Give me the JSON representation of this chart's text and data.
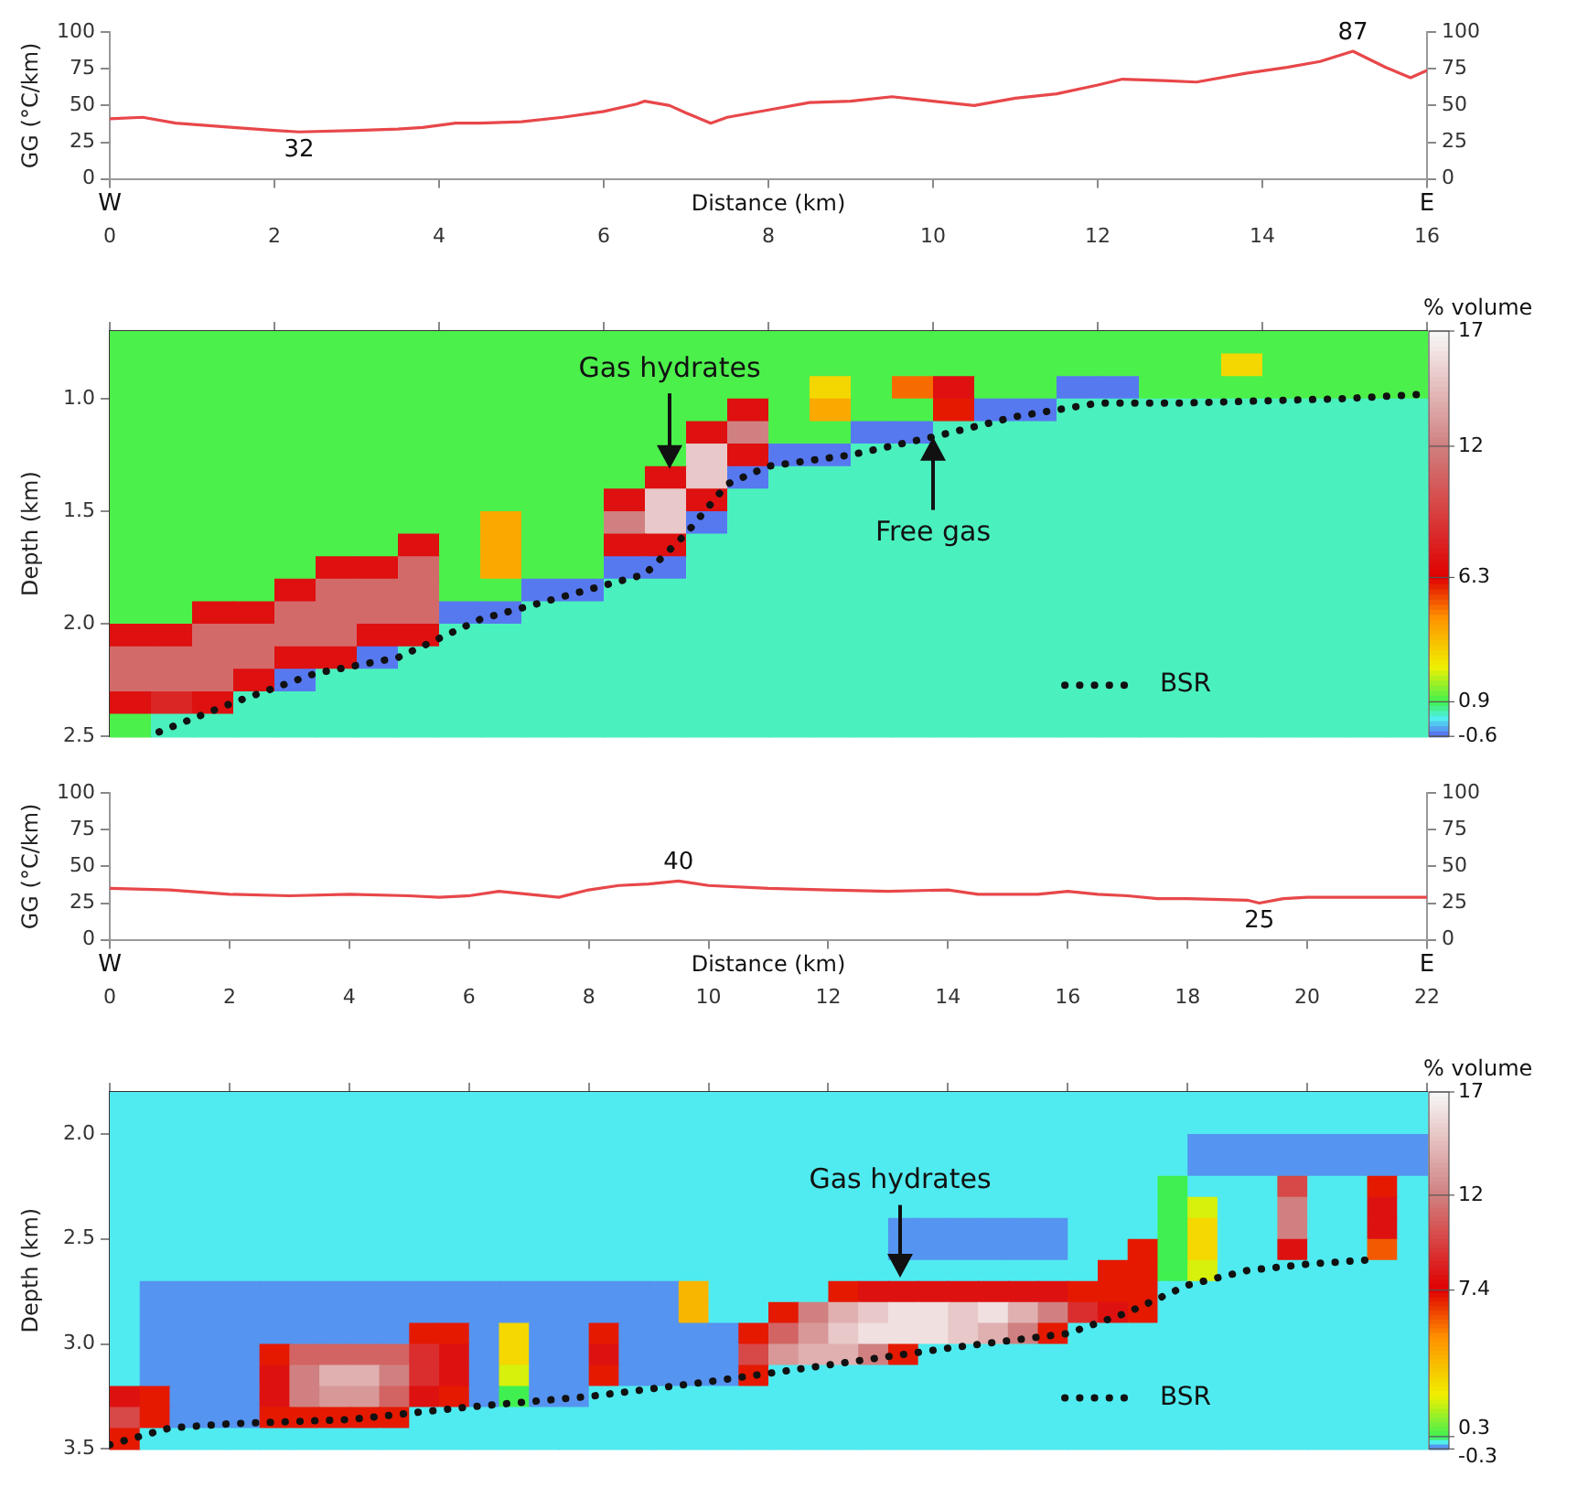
{
  "chart_data": [
    {
      "type": "line",
      "xlabel": "Distance (km)",
      "ylabel": "GG (°C/km)",
      "xlim": [
        0,
        16
      ],
      "xticks": [
        0,
        2,
        4,
        6,
        8,
        10,
        12,
        14,
        16
      ],
      "ylim": [
        0,
        100
      ],
      "yticks": [
        0,
        25,
        50,
        75,
        100
      ],
      "y2lim": [
        0,
        100
      ],
      "y2ticks": [
        0,
        25,
        50,
        75,
        100
      ],
      "x": [
        0,
        0.4,
        0.8,
        1.5,
        2,
        2.3,
        3,
        3.5,
        3.8,
        4.2,
        4.5,
        5,
        5.5,
        6,
        6.4,
        6.5,
        6.8,
        7,
        7.3,
        7.5,
        8,
        8.5,
        9,
        9.5,
        10,
        10.5,
        11,
        11.5,
        12,
        12.3,
        12.8,
        13.2,
        13.8,
        14.3,
        14.7,
        15.1,
        15.5,
        15.8,
        16
      ],
      "series": [
        {
          "color": "#e8474a",
          "values": [
            41,
            42,
            38,
            35,
            33,
            32,
            33,
            34,
            35,
            38,
            38,
            39,
            42,
            46,
            51,
            53,
            50,
            45,
            38,
            42,
            47,
            52,
            53,
            56,
            53,
            50,
            55,
            58,
            64,
            68,
            67,
            66,
            72,
            76,
            80,
            87,
            76,
            69,
            74
          ]
        }
      ],
      "annotations": [
        "W",
        "E",
        {
          "text": "32",
          "x": 2.3,
          "y": 32
        },
        {
          "text": "87",
          "x": 15.1,
          "y": 87
        }
      ]
    },
    {
      "type": "heatmap",
      "ylabel": "Depth (km)",
      "clabel": "% volume",
      "xlim": [
        0,
        16
      ],
      "xticks": [
        0,
        2,
        4,
        6,
        8,
        10,
        12,
        14,
        16
      ],
      "ylim": [
        2.5,
        0.7
      ],
      "yticks": [
        {
          "value": 1,
          "label": "1.0"
        },
        1.5,
        {
          "value": 2,
          "label": "2.0"
        },
        2.5
      ],
      "tick_labels": "y",
      "clim": [
        -0.6,
        17
      ],
      "cticks": [
        -0.6,
        0.9,
        6.3,
        12,
        17
      ],
      "legend": "bottom right",
      "cells": [
        [
          1,
          1,
          1,
          1,
          1,
          1,
          1,
          1,
          1,
          1,
          1,
          1,
          1,
          1,
          1,
          1,
          1,
          1,
          1,
          1,
          1,
          1,
          1,
          1,
          1,
          1,
          1,
          1,
          1,
          1,
          1,
          1
        ],
        [
          1,
          1,
          1,
          1,
          1,
          1,
          1,
          1,
          1,
          1,
          1,
          1,
          1,
          1,
          1,
          1,
          1,
          1,
          1,
          1,
          1,
          1,
          1,
          1,
          1,
          1,
          1,
          3,
          1,
          1,
          1,
          1
        ],
        [
          1,
          1,
          1,
          1,
          1,
          1,
          1,
          1,
          1,
          1,
          1,
          1,
          1,
          1,
          1,
          1,
          1,
          3,
          1,
          5,
          7,
          1,
          1,
          -0.5,
          -0.5,
          1,
          1,
          1,
          1,
          1,
          1,
          1
        ],
        [
          1,
          1,
          1,
          1,
          1,
          1,
          1,
          1,
          1,
          1,
          1,
          1,
          1,
          1,
          1,
          7,
          1,
          4,
          1,
          1,
          6,
          -0.5,
          -0.5,
          0.4,
          0.4,
          0.4,
          0.4,
          0.4,
          0.4,
          0.4,
          0.4,
          0.4
        ],
        [
          1,
          1,
          1,
          1,
          1,
          1,
          1,
          1,
          1,
          1,
          1,
          1,
          1,
          1,
          7,
          12,
          1,
          1,
          -0.5,
          -0.5,
          0.4,
          0.4,
          0.4,
          0.4,
          0.4,
          0.4,
          0.4,
          0.4,
          0.4,
          0.4,
          0.4,
          0.4
        ],
        [
          1,
          1,
          1,
          1,
          1,
          1,
          1,
          1,
          1,
          1,
          1,
          1,
          1,
          1,
          15,
          7,
          -0.5,
          -0.5,
          0.4,
          0.4,
          0.4,
          0.4,
          0.4,
          0.4,
          0.4,
          0.4,
          0.4,
          0.4,
          0.4,
          0.4,
          0.4,
          0.4
        ],
        [
          1,
          1,
          1,
          1,
          1,
          1,
          1,
          1,
          1,
          1,
          1,
          1,
          1,
          7,
          15,
          -0.5,
          0.4,
          0.4,
          0.4,
          0.4,
          0.4,
          0.4,
          0.4,
          0.4,
          0.4,
          0.4,
          0.4,
          0.4,
          0.4,
          0.4,
          0.4,
          0.4
        ],
        [
          1,
          1,
          1,
          1,
          1,
          1,
          1,
          1,
          1,
          1,
          1,
          1,
          7,
          15,
          7,
          0.4,
          0.4,
          0.4,
          0.4,
          0.4,
          0.4,
          0.4,
          0.4,
          0.4,
          0.4,
          0.4,
          0.4,
          0.4,
          0.4,
          0.4,
          0.4,
          0.4
        ],
        [
          1,
          1,
          1,
          1,
          1,
          1,
          1,
          1,
          1,
          4,
          1,
          1,
          12,
          15,
          -0.5,
          0.4,
          0.4,
          0.4,
          0.4,
          0.4,
          0.4,
          0.4,
          0.4,
          0.4,
          0.4,
          0.4,
          0.4,
          0.4,
          0.4,
          0.4,
          0.4,
          0.4
        ],
        [
          1,
          1,
          1,
          1,
          1,
          1,
          1,
          7,
          1,
          4,
          1,
          1,
          7,
          7,
          0.4,
          0.4,
          0.4,
          0.4,
          0.4,
          0.4,
          0.4,
          0.4,
          0.4,
          0.4,
          0.4,
          0.4,
          0.4,
          0.4,
          0.4,
          0.4,
          0.4,
          0.4
        ],
        [
          1,
          1,
          1,
          1,
          1,
          7,
          7,
          11,
          1,
          4,
          1,
          1,
          -0.5,
          -0.5,
          0.4,
          0.4,
          0.4,
          0.4,
          0.4,
          0.4,
          0.4,
          0.4,
          0.4,
          0.4,
          0.4,
          0.4,
          0.4,
          0.4,
          0.4,
          0.4,
          0.4,
          0.4
        ],
        [
          1,
          1,
          1,
          1,
          7,
          11,
          11,
          11,
          1,
          1,
          -0.5,
          -0.5,
          0.4,
          0.4,
          0.4,
          0.4,
          0.4,
          0.4,
          0.4,
          0.4,
          0.4,
          0.4,
          0.4,
          0.4,
          0.4,
          0.4,
          0.4,
          0.4,
          0.4,
          0.4,
          0.4,
          0.4
        ],
        [
          1,
          1,
          7,
          7,
          11,
          11,
          11,
          11,
          -0.5,
          -0.5,
          0.4,
          0.4,
          0.4,
          0.4,
          0.4,
          0.4,
          0.4,
          0.4,
          0.4,
          0.4,
          0.4,
          0.4,
          0.4,
          0.4,
          0.4,
          0.4,
          0.4,
          0.4,
          0.4,
          0.4,
          0.4,
          0.4
        ],
        [
          7,
          7,
          11,
          11,
          11,
          11,
          7,
          7,
          0.4,
          0.4,
          0.4,
          0.4,
          0.4,
          0.4,
          0.4,
          0.4,
          0.4,
          0.4,
          0.4,
          0.4,
          0.4,
          0.4,
          0.4,
          0.4,
          0.4,
          0.4,
          0.4,
          0.4,
          0.4,
          0.4,
          0.4,
          0.4
        ],
        [
          11,
          11,
          11,
          11,
          7,
          7,
          -0.5,
          0.4,
          0.4,
          0.4,
          0.4,
          0.4,
          0.4,
          0.4,
          0.4,
          0.4,
          0.4,
          0.4,
          0.4,
          0.4,
          0.4,
          0.4,
          0.4,
          0.4,
          0.4,
          0.4,
          0.4,
          0.4,
          0.4,
          0.4,
          0.4,
          0.4
        ],
        [
          11,
          11,
          11,
          7,
          -0.5,
          0.4,
          0.4,
          0.4,
          0.4,
          0.4,
          0.4,
          0.4,
          0.4,
          0.4,
          0.4,
          0.4,
          0.4,
          0.4,
          0.4,
          0.4,
          0.4,
          0.4,
          0.4,
          0.4,
          0.4,
          0.4,
          0.4,
          0.4,
          0.4,
          0.4,
          0.4,
          0.4
        ],
        [
          7,
          8,
          7,
          0.4,
          0.4,
          0.4,
          0.4,
          0.4,
          0.4,
          0.4,
          0.4,
          0.4,
          0.4,
          0.4,
          0.4,
          0.4,
          0.4,
          0.4,
          0.4,
          0.4,
          0.4,
          0.4,
          0.4,
          0.4,
          0.4,
          0.4,
          0.4,
          0.4,
          0.4,
          0.4,
          0.4,
          0.4
        ],
        [
          1,
          0.4,
          0.4,
          0.4,
          0.4,
          0.4,
          0.4,
          0.4,
          0.4,
          0.4,
          0.4,
          0.4,
          0.4,
          0.4,
          0.4,
          0.4,
          0.4,
          0.4,
          0.4,
          0.4,
          0.4,
          0.4,
          0.4,
          0.4,
          0.4,
          0.4,
          0.4,
          0.4,
          0.4,
          0.4,
          0.4,
          0.4
        ]
      ],
      "series": [
        {
          "type": "line",
          "name": "BSR",
          "color": "#111111",
          "line_style": "dotted",
          "x": [
            0.6,
            1.5,
            2.5,
            3.5,
            4.5,
            5.5,
            6.5,
            7,
            7.5,
            8,
            9,
            10,
            11,
            12,
            13,
            14,
            15,
            16
          ],
          "values": [
            2.48,
            2.35,
            2.22,
            2.15,
            1.98,
            1.88,
            1.78,
            1.6,
            1.38,
            1.3,
            1.25,
            1.17,
            1.08,
            1.02,
            1.02,
            1.01,
            1,
            0.98
          ]
        }
      ],
      "annotations": [
        "Gas hydrates",
        {
          "text": "Free gas",
          "x": 10,
          "y": 1.17
        }
      ]
    },
    {
      "type": "line",
      "xlabel": "Distance (km)",
      "ylabel": "GG (°C/km)",
      "xlim": [
        0,
        22
      ],
      "xticks": [
        0,
        2,
        4,
        6,
        8,
        10,
        12,
        14,
        16,
        18,
        20,
        22
      ],
      "ylim": [
        0,
        100
      ],
      "yticks": [
        0,
        25,
        50,
        75,
        100
      ],
      "y2lim": [
        0,
        100
      ],
      "y2ticks": [
        0,
        25,
        50,
        75,
        100
      ],
      "x": [
        0,
        1,
        2,
        3,
        4,
        5,
        5.5,
        6,
        6.5,
        7,
        7.5,
        8,
        8.5,
        9,
        9.5,
        10,
        11,
        12,
        13,
        14,
        14.5,
        15.5,
        16,
        16.5,
        17,
        17.5,
        18,
        19,
        19.2,
        19.6,
        20,
        22
      ],
      "series": [
        {
          "color": "#e8474a",
          "values": [
            35,
            34,
            31,
            30,
            31,
            30,
            29,
            30,
            33,
            31,
            29,
            34,
            37,
            38,
            40,
            37,
            35,
            34,
            33,
            34,
            31,
            31,
            33,
            31,
            30,
            28,
            28,
            27,
            25,
            28,
            29,
            29
          ]
        }
      ],
      "annotations": [
        "W",
        "E",
        {
          "text": "40",
          "x": 9.5,
          "y": 40
        },
        {
          "text": "25",
          "x": 19.2,
          "y": 25
        }
      ]
    },
    {
      "type": "heatmap",
      "ylabel": "Depth (km)",
      "clabel": "% volume",
      "xlim": [
        0,
        22
      ],
      "xticks": [
        0,
        2,
        4,
        6,
        8,
        10,
        12,
        14,
        16,
        18,
        20,
        22
      ],
      "ylim": [
        3.5,
        1.8
      ],
      "yticks": [
        {
          "value": 2,
          "label": "2.0"
        },
        2.5,
        {
          "value": 3,
          "label": "3.0"
        },
        3.5
      ],
      "tick_labels": "y",
      "clim": [
        -0.3,
        17
      ],
      "cticks": [
        -0.3,
        0.3,
        7.4,
        12,
        17
      ],
      "legend": "bottom right",
      "cells": [
        [
          0,
          0,
          0,
          0,
          0,
          0,
          0,
          0,
          0,
          0,
          0,
          0,
          0,
          0,
          0,
          0,
          0,
          0,
          0,
          0,
          0,
          0,
          0,
          0,
          0,
          0,
          0,
          0,
          0,
          0,
          0,
          0,
          0,
          0,
          0,
          0,
          0,
          0,
          0,
          0,
          0,
          0,
          0,
          0
        ],
        [
          0,
          0,
          0,
          0,
          0,
          0,
          0,
          0,
          0,
          0,
          0,
          0,
          0,
          0,
          0,
          0,
          0,
          0,
          0,
          0,
          0,
          0,
          0,
          0,
          0,
          0,
          0,
          0,
          0,
          0,
          0,
          0,
          0,
          0,
          0,
          0,
          0,
          0,
          0,
          0,
          0,
          0,
          0,
          0
        ],
        [
          0,
          0,
          0,
          0,
          0,
          0,
          0,
          0,
          0,
          0,
          0,
          0,
          0,
          0,
          0,
          0,
          0,
          0,
          0,
          0,
          0,
          0,
          0,
          0,
          0,
          0,
          0,
          0,
          0,
          0,
          0,
          0,
          0,
          0,
          0,
          0,
          -0.2,
          -0.2,
          -0.2,
          -0.2,
          -0.2,
          -0.2,
          -0.2,
          -0.2
        ],
        [
          0,
          0,
          0,
          0,
          0,
          0,
          0,
          0,
          0,
          0,
          0,
          0,
          0,
          0,
          0,
          0,
          0,
          0,
          0,
          0,
          0,
          0,
          0,
          0,
          0,
          0,
          0,
          0,
          0,
          0,
          0,
          0,
          0,
          0,
          0,
          0,
          -0.2,
          -0.2,
          -0.2,
          -0.2,
          -0.2,
          -0.2,
          -0.2,
          -0.2
        ],
        [
          0,
          0,
          0,
          0,
          0,
          0,
          0,
          0,
          0,
          0,
          0,
          0,
          0,
          0,
          0,
          0,
          0,
          0,
          0,
          0,
          0,
          0,
          0,
          0,
          0,
          0,
          0,
          0,
          0,
          0,
          0,
          0,
          0,
          0,
          0,
          0.3,
          0,
          0,
          0,
          10,
          0,
          0,
          7,
          0
        ],
        [
          0,
          0,
          0,
          0,
          0,
          0,
          0,
          0,
          0,
          0,
          0,
          0,
          0,
          0,
          0,
          0,
          0,
          0,
          0,
          0,
          0,
          0,
          0,
          0,
          0,
          0,
          0,
          0,
          0,
          0,
          0,
          0,
          0,
          0,
          0,
          0.3,
          2,
          0,
          0,
          12,
          0,
          0,
          8,
          0
        ],
        [
          0,
          0,
          0,
          0,
          0,
          0,
          0,
          0,
          0,
          0,
          0,
          0,
          0,
          0,
          0,
          0,
          0,
          0,
          0,
          0,
          0,
          0,
          0,
          0,
          0,
          0,
          -0.2,
          -0.2,
          -0.2,
          -0.2,
          -0.2,
          -0.2,
          0,
          0,
          0,
          0.3,
          3,
          0,
          0,
          12,
          0,
          0,
          8,
          0
        ],
        [
          0,
          0,
          0,
          0,
          0,
          0,
          0,
          0,
          0,
          0,
          0,
          0,
          0,
          0,
          0,
          0,
          0,
          0,
          0,
          0,
          0,
          0,
          0,
          0,
          0,
          0,
          -0.2,
          -0.2,
          -0.2,
          -0.2,
          -0.2,
          -0.2,
          0,
          0,
          7,
          0.3,
          3,
          0,
          0,
          8,
          0,
          0,
          6,
          0
        ],
        [
          0,
          0,
          0,
          0,
          0,
          0,
          0,
          0,
          0,
          0,
          0,
          0,
          0,
          0,
          0,
          0,
          0,
          0,
          0,
          0,
          0,
          0,
          0,
          0,
          0,
          0,
          0,
          0,
          0,
          0,
          0,
          0,
          0,
          7,
          7,
          0.3,
          2,
          0,
          0,
          0,
          0,
          0,
          0,
          0
        ],
        [
          0,
          -0.2,
          -0.2,
          -0.2,
          -0.2,
          -0.2,
          -0.2,
          -0.2,
          -0.2,
          -0.2,
          -0.2,
          -0.2,
          -0.2,
          -0.2,
          -0.2,
          -0.2,
          -0.2,
          -0.2,
          -0.2,
          4,
          0,
          0,
          0,
          0,
          7,
          8,
          8,
          8,
          8,
          8,
          8,
          8,
          7,
          7,
          7,
          0,
          0,
          0,
          0,
          0,
          0,
          0,
          0,
          0
        ],
        [
          0,
          -0.2,
          -0.2,
          -0.2,
          -0.2,
          -0.2,
          -0.2,
          -0.2,
          -0.2,
          -0.2,
          -0.2,
          -0.2,
          -0.2,
          -0.2,
          -0.2,
          -0.2,
          -0.2,
          -0.2,
          -0.2,
          4,
          0,
          0,
          7,
          12,
          14,
          15,
          16,
          16,
          15,
          16,
          14,
          12,
          9,
          8,
          7,
          0,
          0,
          0,
          0,
          0,
          0,
          0,
          0,
          0
        ],
        [
          0,
          -0.2,
          -0.2,
          -0.2,
          -0.2,
          -0.2,
          -0.2,
          -0.2,
          -0.2,
          -0.2,
          7,
          7,
          -0.2,
          3,
          -0.2,
          -0.2,
          7,
          -0.2,
          -0.2,
          -0.2,
          -0.2,
          7,
          11,
          13,
          15,
          16,
          16,
          16,
          15,
          14,
          12,
          7,
          0,
          0,
          0,
          0,
          0,
          0,
          0,
          0,
          0,
          0,
          0,
          0
        ],
        [
          0,
          -0.2,
          -0.2,
          -0.2,
          -0.2,
          7,
          11,
          11,
          11,
          11,
          9,
          8,
          -0.2,
          3,
          -0.2,
          -0.2,
          8,
          -0.2,
          -0.2,
          -0.2,
          -0.2,
          10,
          13,
          14,
          14,
          12,
          7,
          0,
          0,
          0,
          0,
          0,
          0,
          0,
          0,
          0,
          0,
          0,
          0,
          0,
          0,
          0,
          0,
          0
        ],
        [
          0,
          -0.2,
          -0.2,
          -0.2,
          -0.2,
          8,
          12,
          14,
          14,
          12,
          9,
          8,
          -0.2,
          2,
          -0.2,
          -0.2,
          7,
          -0.2,
          -0.2,
          -0.2,
          -0.2,
          7,
          0,
          0,
          0,
          0,
          0,
          0,
          0,
          0,
          0,
          0,
          0,
          0,
          0,
          0,
          0,
          0,
          0,
          0,
          0,
          0,
          0,
          0
        ],
        [
          8,
          7,
          -0.2,
          -0.2,
          -0.2,
          8,
          12,
          13,
          13,
          11,
          8,
          7,
          -0.2,
          0.3,
          -0.2,
          -0.2,
          0,
          0,
          0,
          0,
          0,
          0,
          0,
          0,
          0,
          0,
          0,
          0,
          0,
          0,
          0,
          0,
          0,
          0,
          0,
          0,
          0,
          0,
          0,
          0,
          0,
          0,
          0,
          0
        ],
        [
          10,
          7,
          -0.2,
          -0.2,
          -0.2,
          7,
          7,
          7,
          7,
          7,
          0,
          0,
          0,
          0,
          0,
          0,
          0,
          0,
          0,
          0,
          0,
          0,
          0,
          0,
          0,
          0,
          0,
          0,
          0,
          0,
          0,
          0,
          0,
          0,
          0,
          0,
          0,
          0,
          0,
          0,
          0,
          0,
          0,
          0
        ],
        [
          7,
          0,
          0,
          0,
          0,
          0,
          0,
          0,
          0,
          0,
          0,
          0,
          0,
          0,
          0,
          0,
          0,
          0,
          0,
          0,
          0,
          0,
          0,
          0,
          0,
          0,
          0,
          0,
          0,
          0,
          0,
          0,
          0,
          0,
          0,
          0,
          0,
          0,
          0,
          0,
          0,
          0,
          0,
          0
        ]
      ],
      "series": [
        {
          "type": "line",
          "name": "BSR",
          "color": "#111111",
          "line_style": "dotted",
          "x": [
            0,
            1,
            2,
            4,
            6,
            8,
            10,
            12,
            14,
            16,
            17,
            18,
            19,
            20,
            21
          ],
          "values": [
            3.48,
            3.4,
            3.38,
            3.36,
            3.3,
            3.25,
            3.18,
            3.1,
            3.02,
            2.95,
            2.85,
            2.72,
            2.65,
            2.62,
            2.6
          ]
        }
      ],
      "annotations": [
        "Gas hydrates"
      ]
    }
  ]
}
